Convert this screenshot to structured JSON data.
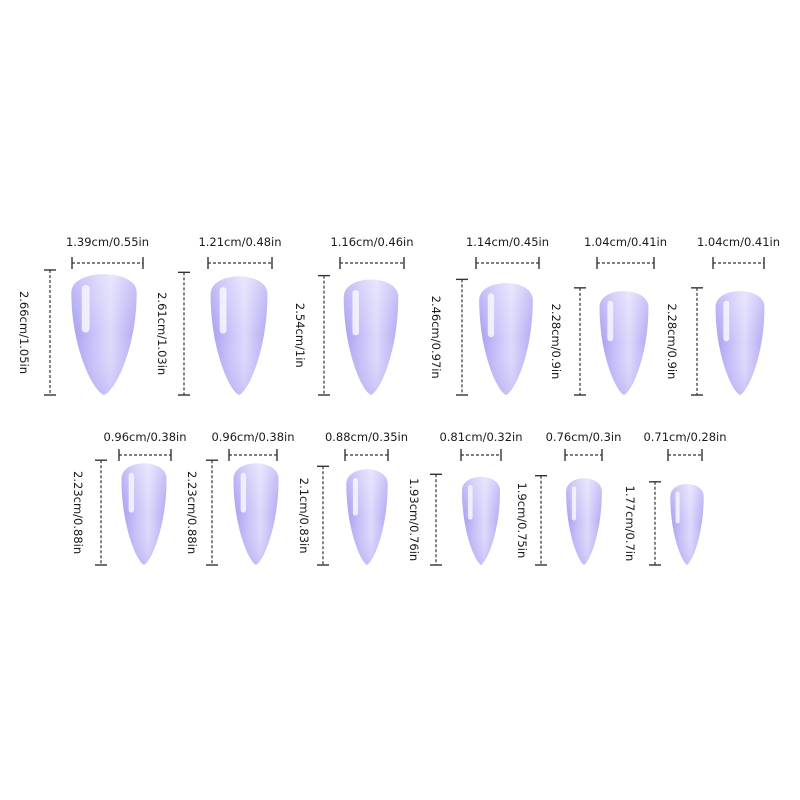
{
  "colors": {
    "background": "#ffffff",
    "nail_light": "#e3e0fb",
    "nail_mid": "#c3bcf7",
    "nail_dark": "#a79df2",
    "highlight": "#f5f3ff",
    "dimension_line": "#333333"
  },
  "nails": [
    {
      "id": 1,
      "width_label": "1.39cm/0.55in",
      "length_label": "2.66cm/1.05in",
      "width_cm": 1.39,
      "length_cm": 2.66
    },
    {
      "id": 2,
      "width_label": "1.21cm/0.48in",
      "length_label": "2.61cm/1.03in",
      "width_cm": 1.21,
      "length_cm": 2.61
    },
    {
      "id": 3,
      "width_label": "1.16cm/0.46in",
      "length_label": "2.54cm/1in",
      "width_cm": 1.16,
      "length_cm": 2.54
    },
    {
      "id": 4,
      "width_label": "1.14cm/0.45in",
      "length_label": "2.46cm/0.97in",
      "width_cm": 1.14,
      "length_cm": 2.46
    },
    {
      "id": 5,
      "width_label": "1.04cm/0.41in",
      "length_label": "2.28cm/0.9in",
      "width_cm": 1.04,
      "length_cm": 2.28
    },
    {
      "id": 6,
      "width_label": "1.04cm/0.41in",
      "length_label": "2.28cm/0.9in",
      "width_cm": 1.04,
      "length_cm": 2.28
    },
    {
      "id": 7,
      "width_label": "0.96cm/0.38in",
      "length_label": "2.23cm/0.88in",
      "width_cm": 0.96,
      "length_cm": 2.23
    },
    {
      "id": 8,
      "width_label": "0.96cm/0.38in",
      "length_label": "2.23cm/0.88in",
      "width_cm": 0.96,
      "length_cm": 2.23
    },
    {
      "id": 9,
      "width_label": "0.88cm/0.35in",
      "length_label": "2.1cm/0.83in",
      "width_cm": 0.88,
      "length_cm": 2.1
    },
    {
      "id": 10,
      "width_label": "0.81cm/0.32in",
      "length_label": "1.93cm/0.76in",
      "width_cm": 0.81,
      "length_cm": 1.93
    },
    {
      "id": 11,
      "width_label": "0.76cm/0.3in",
      "length_label": "1.9cm/0.75in",
      "width_cm": 0.76,
      "length_cm": 1.9
    },
    {
      "id": 12,
      "width_label": "0.71cm/0.28in",
      "length_label": "1.77cm/0.7in",
      "width_cm": 0.71,
      "length_cm": 1.77
    }
  ]
}
